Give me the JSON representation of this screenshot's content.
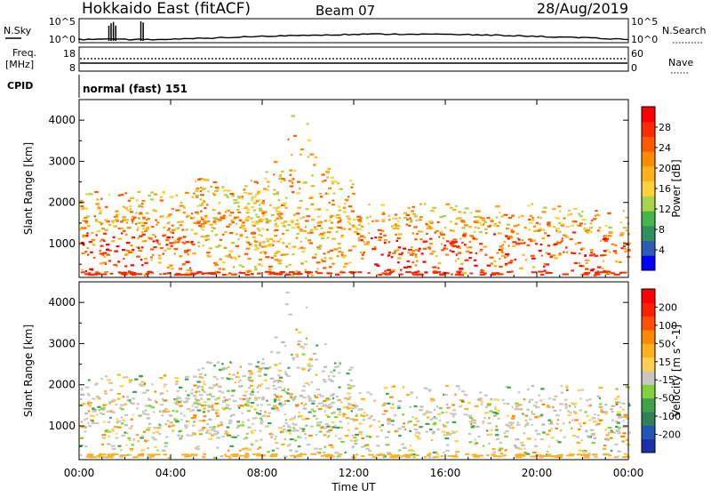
{
  "header": {
    "title": "Hokkaido East (fitACF)",
    "beam": "Beam 07",
    "date": "28/Aug/2019"
  },
  "top_strip": {
    "left_label": "N.Sky",
    "left_ticks": [
      "10^5",
      "10^0"
    ],
    "right_ticks": [
      "10^5",
      "10^0"
    ],
    "right_label": "N.Search"
  },
  "freq_strip": {
    "label_line1": "Freq.",
    "label_line2": "[MHz]",
    "left_ticks": [
      "18",
      "8"
    ],
    "right_ticks": [
      "60",
      "0"
    ],
    "right_label": "Nave"
  },
  "cpid": {
    "label": "CPID",
    "text": "normal (fast) 151"
  },
  "chart_data": [
    {
      "type": "heatmap",
      "panel": "power",
      "ylabel": "Slant Range [km]",
      "ylim": [
        180,
        4500
      ],
      "y_ticks": [
        "4000",
        "3000",
        "2000",
        "1000"
      ],
      "y_tick_values": [
        4000,
        3000,
        2000,
        1000
      ],
      "colorbar_label": "Power [dB]",
      "colorbar_ticks": [
        "28",
        "24",
        "20",
        "16",
        "12",
        "8",
        "4"
      ],
      "colorbar_colors": [
        "#0000ff",
        "#2e5bb5",
        "#2f8f5f",
        "#44b64a",
        "#a8d44c",
        "#ffd23a",
        "#ffb21e",
        "#ff8b00",
        "#ff5a00",
        "#ff2a00",
        "#ff0000"
      ],
      "grid": false
    },
    {
      "type": "heatmap",
      "panel": "velocity",
      "ylabel": "Slant Range [km]",
      "ylim": [
        180,
        4500
      ],
      "y_ticks": [
        "4000",
        "3000",
        "2000",
        "1000"
      ],
      "y_tick_values": [
        4000,
        3000,
        2000,
        1000
      ],
      "colorbar_label": "Velocity [m s^-1]",
      "colorbar_ticks": [
        "200",
        "100",
        "50",
        "15",
        "-15",
        "-50",
        "-100",
        "-200"
      ],
      "colorbar_colors": [
        "#1a2fa8",
        "#2156b8",
        "#2f7f5a",
        "#3fa34a",
        "#7fd23c",
        "#c8c8c0",
        "#ffd050",
        "#ffb020",
        "#ff8a00",
        "#ff5000",
        "#ff2000",
        "#ff0000"
      ],
      "grid": false
    }
  ],
  "x_axis": {
    "label": "Time UT",
    "ticks": [
      "00:00",
      "04:00",
      "08:00",
      "12:00",
      "16:00",
      "20:00",
      "00:00"
    ],
    "tick_hours": [
      0,
      4,
      8,
      12,
      16,
      20,
      24
    ]
  }
}
